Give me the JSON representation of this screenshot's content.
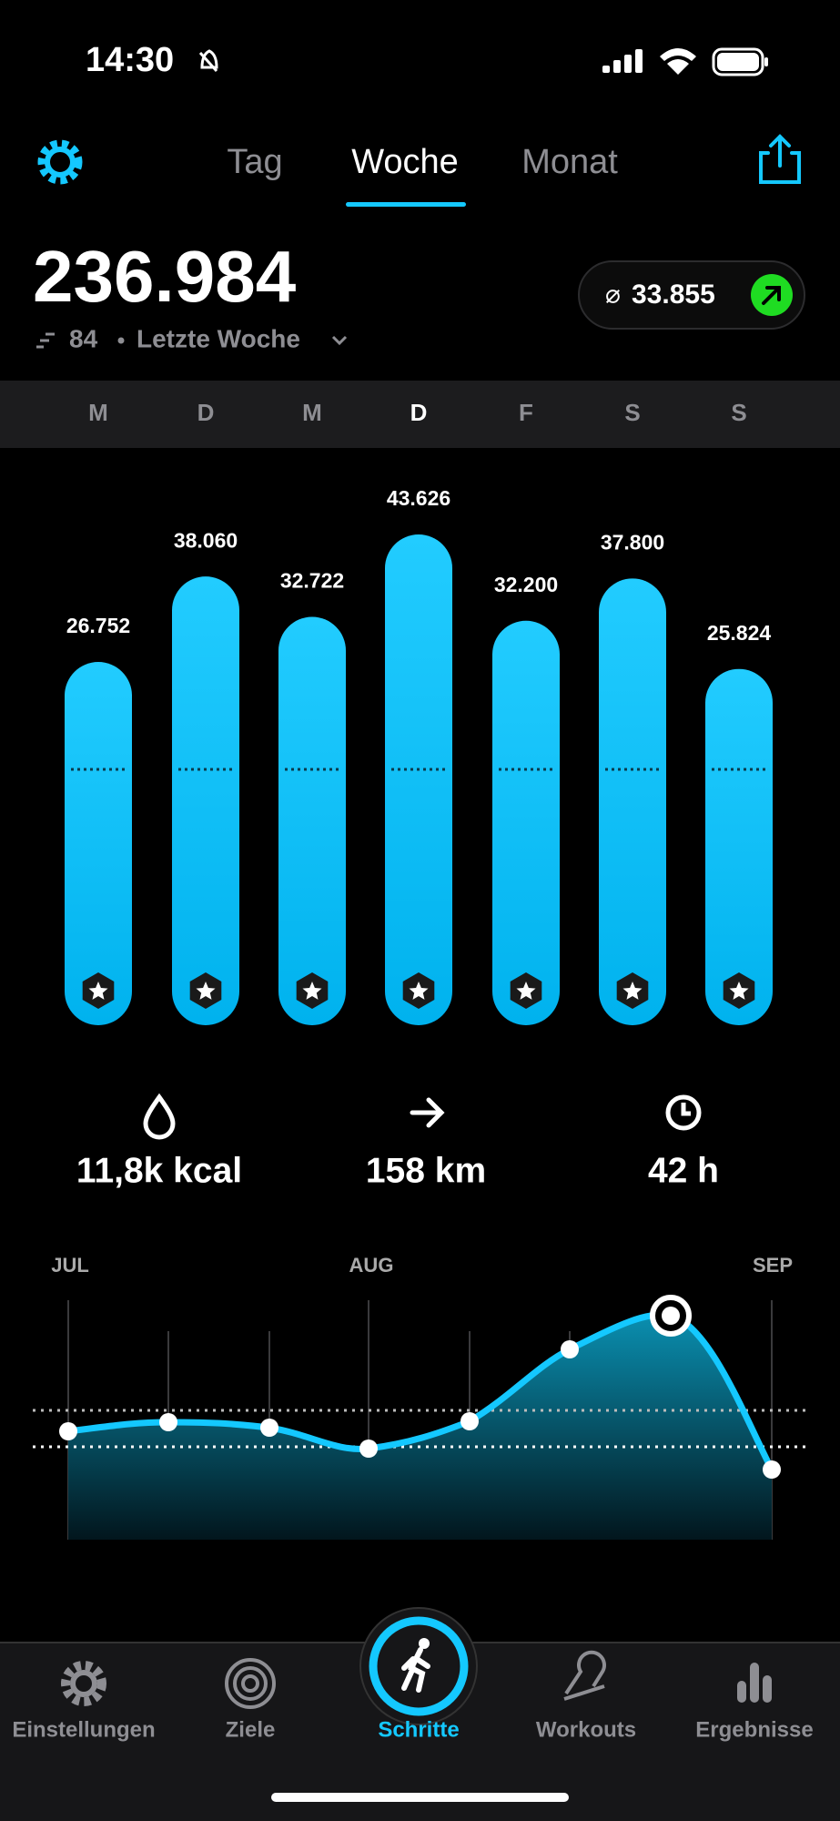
{
  "status_bar": {
    "time": "14:30"
  },
  "tabs": [
    "Tag",
    "Woche",
    "Monat"
  ],
  "summary": {
    "total": "236.984",
    "rank": "84",
    "period": "Letzte Woche",
    "average_symbol": "⌀",
    "average": "33.855"
  },
  "week_chart": {
    "days": [
      "M",
      "D",
      "M",
      "D",
      "F",
      "S",
      "S"
    ],
    "values": [
      26752,
      38060,
      32722,
      43626,
      32200,
      37800,
      25824
    ],
    "value_labels": [
      "26.752",
      "38.060",
      "32.722",
      "43.626",
      "32.200",
      "37.800",
      "25.824"
    ]
  },
  "stats": [
    "11,8k kcal",
    "158 km",
    "42 h"
  ],
  "trend_chart": {
    "months": [
      "JUL",
      "AUG",
      "SEP"
    ]
  },
  "nav": [
    "Einstellungen",
    "Ziele",
    "Schritte",
    "Workouts",
    "Ergebnisse"
  ]
}
